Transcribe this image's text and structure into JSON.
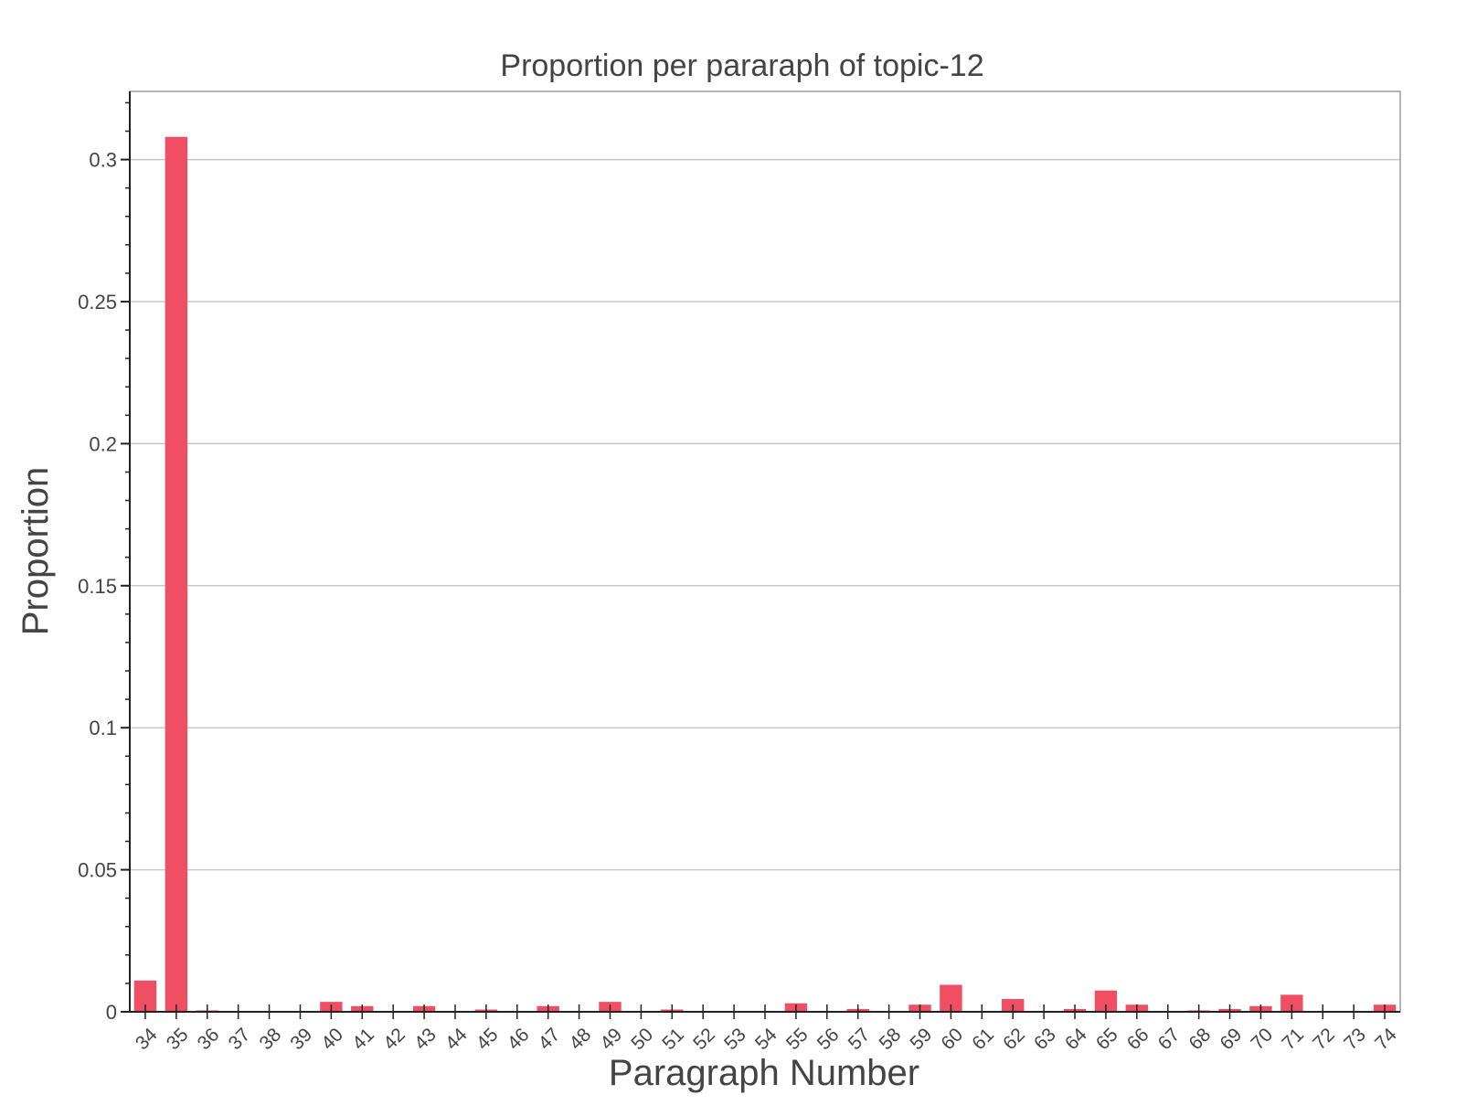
{
  "chart_data": {
    "type": "bar",
    "title": "Proportion per pararaph of topic-12",
    "xlabel": "Paragraph Number",
    "ylabel": "Proportion",
    "categories": [
      "34",
      "35",
      "36",
      "37",
      "38",
      "39",
      "40",
      "41",
      "42",
      "43",
      "44",
      "45",
      "46",
      "47",
      "48",
      "49",
      "50",
      "51",
      "52",
      "53",
      "54",
      "55",
      "56",
      "57",
      "58",
      "59",
      "60",
      "61",
      "62",
      "63",
      "64",
      "65",
      "66",
      "67",
      "68",
      "69",
      "70",
      "71",
      "72",
      "73",
      "74"
    ],
    "values": [
      0.011,
      0.308,
      0.0005,
      0,
      0,
      0,
      0.0035,
      0.002,
      0,
      0.002,
      0,
      0.0008,
      0,
      0.002,
      0,
      0.0035,
      0,
      0.0008,
      0,
      0,
      0,
      0.003,
      0,
      0.001,
      0,
      0.0025,
      0.0095,
      0,
      0.0045,
      0,
      0.001,
      0.0075,
      0.0025,
      0,
      0.0005,
      0.001,
      0.002,
      0.006,
      0,
      0,
      0.0025
    ],
    "ylim": [
      0,
      0.324
    ],
    "yticks": [
      0,
      0.05,
      0.1,
      0.15,
      0.2,
      0.25,
      0.3
    ],
    "ytick_labels": [
      "0",
      "0.05",
      "0.1",
      "0.15",
      "0.2",
      "0.25",
      "0.3"
    ],
    "grid": "horizontal",
    "bar_color": "#f04e63",
    "legend": "none"
  }
}
